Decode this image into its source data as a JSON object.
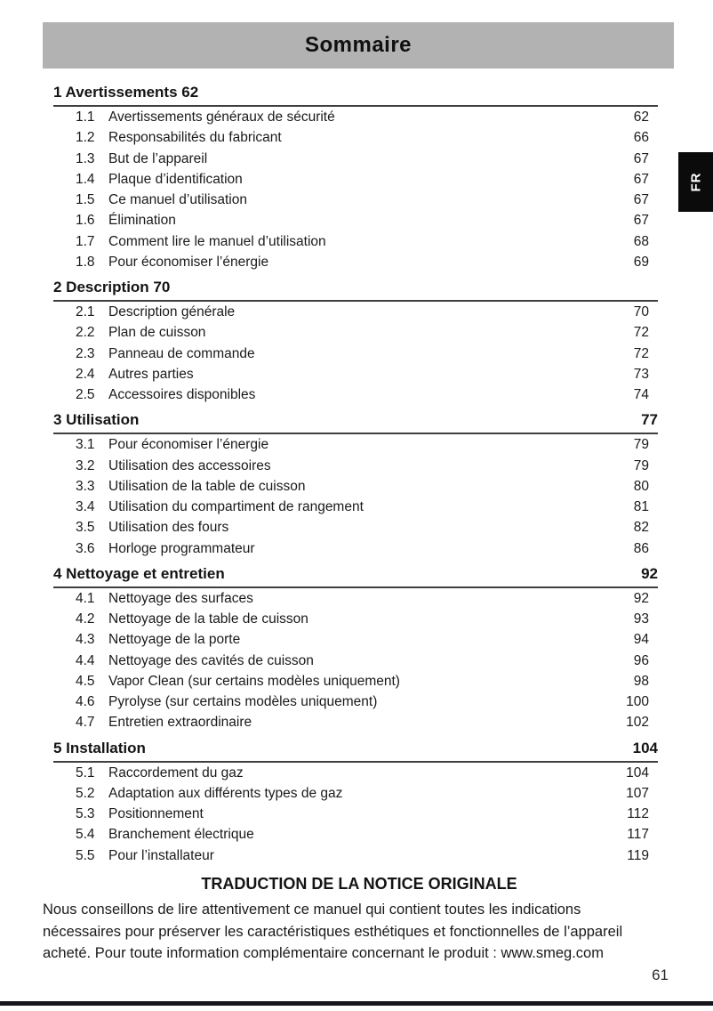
{
  "header": {
    "title": "Sommaire"
  },
  "language_tab": {
    "label": "FR"
  },
  "toc": {
    "sections": [
      {
        "number": "1",
        "title": "Avertissements",
        "page": "62",
        "page_inline": true,
        "items": [
          {
            "num": "1.1",
            "label": "Avertissements généraux de sécurité",
            "page": "62"
          },
          {
            "num": "1.2",
            "label": "Responsabilités du fabricant",
            "page": "66"
          },
          {
            "num": "1.3",
            "label": "But de l’appareil",
            "page": "67"
          },
          {
            "num": "1.4",
            "label": "Plaque d’identification",
            "page": "67"
          },
          {
            "num": "1.5",
            "label": "Ce manuel d’utilisation",
            "page": "67"
          },
          {
            "num": "1.6",
            "label": "Élimination",
            "page": "67"
          },
          {
            "num": "1.7",
            "label": "Comment lire le manuel d’utilisation",
            "page": "68"
          },
          {
            "num": "1.8",
            "label": "Pour économiser l’énergie",
            "page": "69"
          }
        ]
      },
      {
        "number": "2",
        "title": "Description",
        "page": "70",
        "page_inline": true,
        "items": [
          {
            "num": "2.1",
            "label": "Description générale",
            "page": "70"
          },
          {
            "num": "2.2",
            "label": "Plan de cuisson",
            "page": "72"
          },
          {
            "num": "2.3",
            "label": "Panneau de commande",
            "page": "72"
          },
          {
            "num": "2.4",
            "label": "Autres parties",
            "page": "73"
          },
          {
            "num": "2.5",
            "label": "Accessoires disponibles",
            "page": "74"
          }
        ]
      },
      {
        "number": "3",
        "title": "Utilisation",
        "page": "77",
        "page_inline": false,
        "items": [
          {
            "num": "3.1",
            "label": "Pour économiser l’énergie",
            "page": "79"
          },
          {
            "num": "3.2",
            "label": "Utilisation des accessoires",
            "page": "79"
          },
          {
            "num": "3.3",
            "label": "Utilisation de la table de cuisson",
            "page": "80"
          },
          {
            "num": "3.4",
            "label": "Utilisation du compartiment de rangement",
            "page": "81"
          },
          {
            "num": "3.5",
            "label": "Utilisation des fours",
            "page": "82"
          },
          {
            "num": "3.6",
            "label": "Horloge programmateur",
            "page": "86"
          }
        ]
      },
      {
        "number": "4",
        "title": "Nettoyage et entretien",
        "page": "92",
        "page_inline": false,
        "items": [
          {
            "num": "4.1",
            "label": "Nettoyage des surfaces",
            "page": "92"
          },
          {
            "num": "4.2",
            "label": "Nettoyage de la table de cuisson",
            "page": "93"
          },
          {
            "num": "4.3",
            "label": "Nettoyage de la porte",
            "page": "94"
          },
          {
            "num": "4.4",
            "label": "Nettoyage des cavités de cuisson",
            "page": "96"
          },
          {
            "num": "4.5",
            "label": "Vapor Clean (sur certains modèles uniquement)",
            "page": "98"
          },
          {
            "num": "4.6",
            "label": "Pyrolyse (sur certains modèles uniquement)",
            "page": "100"
          },
          {
            "num": "4.7",
            "label": "Entretien extraordinaire",
            "page": "102"
          }
        ]
      },
      {
        "number": "5",
        "title": "Installation",
        "page": "104",
        "page_inline": false,
        "items": [
          {
            "num": "5.1",
            "label": "Raccordement du gaz",
            "page": "104"
          },
          {
            "num": "5.2",
            "label": "Adaptation aux différents types de gaz",
            "page": "107"
          },
          {
            "num": "5.3",
            "label": "Positionnement",
            "page": "112"
          },
          {
            "num": "5.4",
            "label": "Branchement électrique",
            "page": "117"
          },
          {
            "num": "5.5",
            "label": "Pour l’installateur",
            "page": "119"
          }
        ]
      }
    ]
  },
  "footer": {
    "heading": "TRADUCTION DE LA NOTICE ORIGINALE",
    "lines": [
      "Nous conseillons de lire attentivement ce manuel qui contient toutes les indications",
      "nécessaires pour préserver les caractéristiques esthétiques et fonctionnelles de l’appareil",
      "acheté. Pour toute information complémentaire concernant le produit : www.smeg.com"
    ],
    "page_number": "61"
  },
  "colors": {
    "header_bg": "#b2b2b2",
    "tab_bg": "#0b0b0b",
    "text": "#1a1a1a",
    "rule": "#3f3f3f",
    "bottom_bar": "#15151c"
  }
}
